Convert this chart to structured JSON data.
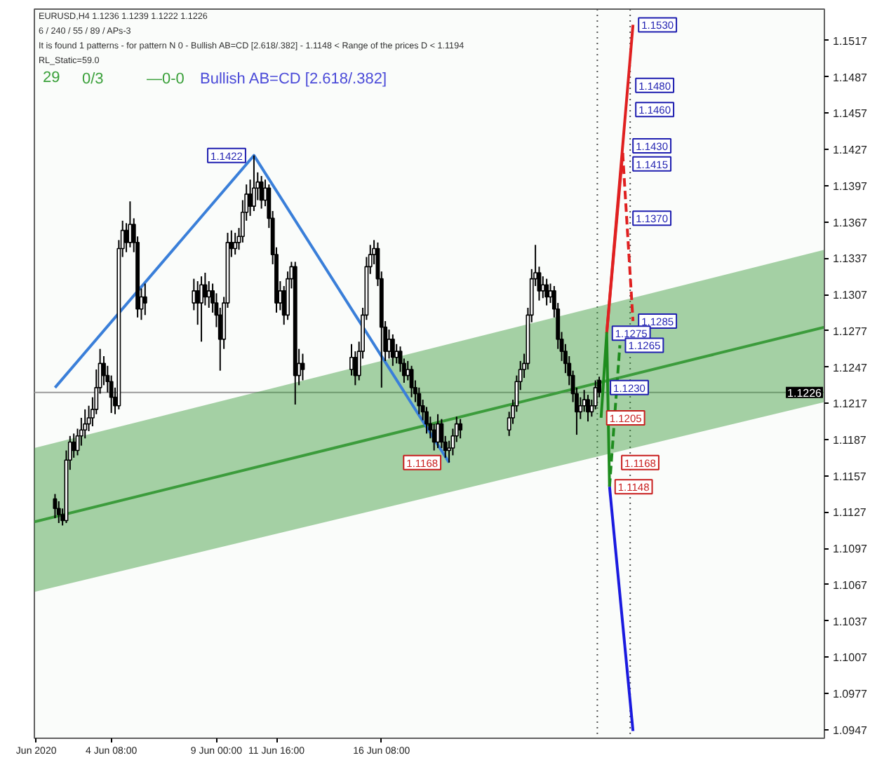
{
  "chart_data": {
    "type": "candlestick",
    "title": "EURUSD,H4 1.1236 1.1239 1.1222 1.1226",
    "subtitle": "6 / 240 / 55 / 89 / APs-3",
    "x": [
      "2020-06-01T20:00",
      "2020-06-02T00:00",
      "2020-06-02T04:00",
      "2020-06-02T08:00",
      "2020-06-02T12:00",
      "2020-06-02T16:00",
      "2020-06-02T20:00",
      "2020-06-03T00:00",
      "2020-06-03T04:00",
      "2020-06-03T08:00",
      "2020-06-03T12:00",
      "2020-06-03T16:00",
      "2020-06-03T20:00",
      "2020-06-04T00:00",
      "2020-06-04T04:00",
      "2020-06-04T08:00",
      "2020-06-04T12:00",
      "2020-06-04T16:00",
      "2020-06-04T20:00",
      "2020-06-05T00:00",
      "2020-06-05T04:00",
      "2020-06-05T08:00",
      "2020-06-05T12:00",
      "2020-06-05T16:00",
      "2020-06-05T20:00",
      "2020-06-08T00:00",
      "2020-06-08T04:00",
      "2020-06-08T08:00",
      "2020-06-08T12:00",
      "2020-06-08T16:00",
      "2020-06-08T20:00",
      "2020-06-09T00:00",
      "2020-06-09T04:00",
      "2020-06-09T08:00",
      "2020-06-09T12:00",
      "2020-06-09T16:00",
      "2020-06-09T20:00",
      "2020-06-10T00:00",
      "2020-06-10T04:00",
      "2020-06-10T08:00",
      "2020-06-10T12:00",
      "2020-06-10T16:00",
      "2020-06-10T20:00",
      "2020-06-11T00:00",
      "2020-06-11T04:00",
      "2020-06-11T08:00",
      "2020-06-11T12:00",
      "2020-06-11T16:00",
      "2020-06-11T20:00",
      "2020-06-12T00:00",
      "2020-06-12T04:00",
      "2020-06-12T08:00",
      "2020-06-12T12:00",
      "2020-06-12T16:00",
      "2020-06-12T20:00",
      "2020-06-15T00:00",
      "2020-06-15T04:00",
      "2020-06-15T08:00",
      "2020-06-15T12:00",
      "2020-06-15T16:00",
      "2020-06-15T20:00",
      "2020-06-16T00:00",
      "2020-06-16T04:00",
      "2020-06-16T08:00",
      "2020-06-16T12:00",
      "2020-06-16T16:00",
      "2020-06-16T20:00",
      "2020-06-17T00:00",
      "2020-06-17T04:00",
      "2020-06-17T08:00",
      "2020-06-17T12:00",
      "2020-06-17T16:00",
      "2020-06-17T20:00",
      "2020-06-18T00:00",
      "2020-06-18T04:00",
      "2020-06-18T08:00",
      "2020-06-18T12:00",
      "2020-06-18T16:00",
      "2020-06-18T20:00",
      "2020-06-19T00:00",
      "2020-06-19T04:00",
      "2020-06-19T08:00",
      "2020-06-19T12:00",
      "2020-06-19T16:00",
      "2020-06-19T20:00",
      "2020-06-22T00:00",
      "2020-06-22T04:00",
      "2020-06-22T08:00",
      "2020-06-22T12:00",
      "2020-06-22T16:00",
      "2020-06-22T20:00",
      "2020-06-23T00:00",
      "2020-06-23T04:00",
      "2020-06-23T08:00",
      "2020-06-23T12:00",
      "2020-06-23T16:00",
      "2020-06-23T20:00",
      "2020-06-24T00:00",
      "2020-06-24T04:00",
      "2020-06-24T08:00",
      "2020-06-24T12:00",
      "2020-06-24T16:00",
      "2020-06-24T20:00",
      "2020-06-25T00:00",
      "2020-06-25T04:00",
      "2020-06-25T08:00",
      "2020-06-25T12:00",
      "2020-06-25T16:00",
      "2020-06-25T20:00",
      "2020-06-26T00:00"
    ],
    "ohlc": [
      [
        1.1138,
        1.1142,
        1.1122,
        1.113
      ],
      [
        1.113,
        1.1136,
        1.1118,
        1.1125
      ],
      [
        1.1125,
        1.113,
        1.1116,
        1.112
      ],
      [
        1.112,
        1.1178,
        1.1118,
        1.117
      ],
      [
        1.117,
        1.119,
        1.1162,
        1.1185
      ],
      [
        1.1185,
        1.1192,
        1.1172,
        1.1178
      ],
      [
        1.1178,
        1.1196,
        1.1174,
        1.119
      ],
      [
        1.119,
        1.1205,
        1.1182,
        1.1195
      ],
      [
        1.1195,
        1.1212,
        1.1188,
        1.12
      ],
      [
        1.12,
        1.1215,
        1.1194,
        1.1205
      ],
      [
        1.1205,
        1.1222,
        1.1198,
        1.1212
      ],
      [
        1.1212,
        1.1245,
        1.1208,
        1.123
      ],
      [
        1.123,
        1.1262,
        1.1225,
        1.125
      ],
      [
        1.125,
        1.1256,
        1.1232,
        1.124
      ],
      [
        1.124,
        1.1248,
        1.1226,
        1.1235
      ],
      [
        1.1235,
        1.124,
        1.1209,
        1.1222
      ],
      [
        1.1222,
        1.123,
        1.1208,
        1.1215
      ],
      [
        1.1215,
        1.1352,
        1.1212,
        1.1345
      ],
      [
        1.1345,
        1.1368,
        1.1338,
        1.136
      ],
      [
        1.136,
        1.1366,
        1.1342,
        1.135
      ],
      [
        1.135,
        1.1384,
        1.1346,
        1.1365
      ],
      [
        1.1365,
        1.137,
        1.1342,
        1.135
      ],
      [
        1.135,
        1.1355,
        1.1288,
        1.1295
      ],
      [
        1.1295,
        1.1312,
        1.1286,
        1.1305
      ],
      [
        1.1305,
        1.1316,
        1.129,
        1.13
      ],
      [
        1.13,
        1.132,
        1.1294,
        1.131
      ],
      [
        1.131,
        1.1318,
        1.1282,
        1.13
      ],
      [
        1.13,
        1.1322,
        1.1268,
        1.1315
      ],
      [
        1.1315,
        1.1325,
        1.1298,
        1.1305
      ],
      [
        1.1305,
        1.1318,
        1.1296,
        1.131
      ],
      [
        1.131,
        1.1316,
        1.1292,
        1.13
      ],
      [
        1.13,
        1.1308,
        1.128,
        1.129
      ],
      [
        1.129,
        1.1296,
        1.1244,
        1.127
      ],
      [
        1.127,
        1.1305,
        1.1262,
        1.13
      ],
      [
        1.13,
        1.1358,
        1.1296,
        1.135
      ],
      [
        1.135,
        1.136,
        1.1338,
        1.1345
      ],
      [
        1.1345,
        1.1358,
        1.134,
        1.135
      ],
      [
        1.135,
        1.1362,
        1.1344,
        1.1355
      ],
      [
        1.1355,
        1.1385,
        1.135,
        1.1375
      ],
      [
        1.1375,
        1.1398,
        1.1368,
        1.139
      ],
      [
        1.139,
        1.1402,
        1.1372,
        1.138
      ],
      [
        1.138,
        1.1422,
        1.1376,
        1.1395
      ],
      [
        1.1395,
        1.1408,
        1.1385,
        1.14
      ],
      [
        1.14,
        1.1405,
        1.1378,
        1.1385
      ],
      [
        1.1385,
        1.1402,
        1.138,
        1.1395
      ],
      [
        1.1395,
        1.1398,
        1.1362,
        1.137
      ],
      [
        1.137,
        1.1376,
        1.1332,
        1.134
      ],
      [
        1.134,
        1.1346,
        1.1292,
        1.13
      ],
      [
        1.13,
        1.1318,
        1.1294,
        1.131
      ],
      [
        1.131,
        1.1314,
        1.1282,
        1.129
      ],
      [
        1.129,
        1.1326,
        1.1286,
        1.132
      ],
      [
        1.132,
        1.1334,
        1.1312,
        1.133
      ],
      [
        1.133,
        1.1334,
        1.1216,
        1.124
      ],
      [
        1.124,
        1.1262,
        1.1232,
        1.125
      ],
      [
        1.125,
        1.1258,
        1.1236,
        1.1245
      ],
      [
        1.1245,
        1.1266,
        1.124,
        1.1255
      ],
      [
        1.1255,
        1.126,
        1.1232,
        1.124
      ],
      [
        1.124,
        1.1268,
        1.1236,
        1.126
      ],
      [
        1.126,
        1.1296,
        1.1254,
        1.129
      ],
      [
        1.129,
        1.1338,
        1.1286,
        1.133
      ],
      [
        1.133,
        1.1348,
        1.1324,
        1.134
      ],
      [
        1.134,
        1.1352,
        1.1332,
        1.1345
      ],
      [
        1.1345,
        1.135,
        1.1314,
        1.132
      ],
      [
        1.132,
        1.1326,
        1.123,
        1.128
      ],
      [
        1.128,
        1.1285,
        1.1252,
        1.126
      ],
      [
        1.126,
        1.1278,
        1.1254,
        1.127
      ],
      [
        1.127,
        1.1274,
        1.1248,
        1.1255
      ],
      [
        1.1255,
        1.1266,
        1.125,
        1.126
      ],
      [
        1.126,
        1.1264,
        1.1243,
        1.125
      ],
      [
        1.125,
        1.1254,
        1.1234,
        1.124
      ],
      [
        1.124,
        1.1252,
        1.1236,
        1.1245
      ],
      [
        1.1245,
        1.1248,
        1.1222,
        1.123
      ],
      [
        1.123,
        1.1236,
        1.1218,
        1.1225
      ],
      [
        1.1225,
        1.123,
        1.1208,
        1.1215
      ],
      [
        1.1215,
        1.122,
        1.1203,
        1.121
      ],
      [
        1.121,
        1.1214,
        1.1192,
        1.12
      ],
      [
        1.12,
        1.1206,
        1.1188,
        1.1195
      ],
      [
        1.1195,
        1.12,
        1.1178,
        1.1185
      ],
      [
        1.1185,
        1.1208,
        1.118,
        1.12
      ],
      [
        1.12,
        1.1204,
        1.118,
        1.1185
      ],
      [
        1.1185,
        1.119,
        1.1172,
        1.1178
      ],
      [
        1.1178,
        1.1186,
        1.1168,
        1.118
      ],
      [
        1.118,
        1.1196,
        1.1174,
        1.119
      ],
      [
        1.119,
        1.1206,
        1.1185,
        1.12
      ],
      [
        1.12,
        1.1204,
        1.1188,
        1.1195
      ],
      [
        1.1195,
        1.121,
        1.119,
        1.1205
      ],
      [
        1.1205,
        1.122,
        1.12,
        1.1215
      ],
      [
        1.1215,
        1.124,
        1.121,
        1.1235
      ],
      [
        1.1235,
        1.1252,
        1.1228,
        1.1245
      ],
      [
        1.1245,
        1.1258,
        1.1238,
        1.125
      ],
      [
        1.125,
        1.1296,
        1.1245,
        1.129
      ],
      [
        1.129,
        1.1328,
        1.1284,
        1.132
      ],
      [
        1.132,
        1.1348,
        1.1314,
        1.1325
      ],
      [
        1.1325,
        1.133,
        1.1302,
        1.131
      ],
      [
        1.131,
        1.1322,
        1.1304,
        1.1315
      ],
      [
        1.1315,
        1.132,
        1.1298,
        1.1305
      ],
      [
        1.1305,
        1.1316,
        1.13,
        1.131
      ],
      [
        1.131,
        1.1314,
        1.1288,
        1.1295
      ],
      [
        1.1295,
        1.13,
        1.1262,
        1.127
      ],
      [
        1.127,
        1.1276,
        1.1252,
        1.126
      ],
      [
        1.126,
        1.1266,
        1.1242,
        1.125
      ],
      [
        1.125,
        1.1256,
        1.1232,
        1.124
      ],
      [
        1.124,
        1.1244,
        1.1218,
        1.1225
      ],
      [
        1.1225,
        1.123,
        1.1191,
        1.121
      ],
      [
        1.121,
        1.1222,
        1.1204,
        1.1215
      ],
      [
        1.1215,
        1.1228,
        1.121,
        1.122
      ],
      [
        1.122,
        1.1224,
        1.1202,
        1.121
      ],
      [
        1.121,
        1.122,
        1.1206,
        1.1215
      ],
      [
        1.1215,
        1.1236,
        1.1212,
        1.123
      ],
      [
        1.1236,
        1.1239,
        1.1222,
        1.1226
      ]
    ],
    "series": [
      {
        "type": "line",
        "color": "#3c9c3c",
        "x": [
          "2020-05-31T22:00",
          "2020-07-06T00:00"
        ],
        "values": [
          1.1119,
          1.128
        ],
        "lower": [
          1.1061,
          1.1218
        ],
        "upper": [
          1.118,
          1.1344
        ]
      },
      {
        "type": "line",
        "color": "#3a7fd9",
        "x": [
          "2020-06-01T20:00",
          "2020-06-10T16:00",
          "2020-06-19T08:00"
        ],
        "values": [
          1.123,
          1.1422,
          1.1168
        ]
      },
      {
        "type": "line",
        "color": "#e02020",
        "x": [
          "2020-06-26T08:00",
          "2020-06-27T12:00"
        ],
        "values": [
          1.1275,
          1.153
        ]
      },
      {
        "type": "line",
        "color": "#e02020",
        "x": [
          "2020-06-26T08:00",
          "2020-06-27T01:00"
        ],
        "values": [
          1.1275,
          1.1424
        ]
      },
      {
        "type": "line",
        "color": "#e02020",
        "line_style": "dashed",
        "x": [
          "2020-06-27T01:00",
          "2020-06-27T12:00"
        ],
        "values": [
          1.1424,
          1.1285
        ]
      },
      {
        "type": "line",
        "color": "#1e8c1e",
        "x": [
          "2020-06-26T02:00",
          "2020-06-26T08:00",
          "2020-06-26T11:00"
        ],
        "values": [
          1.1205,
          1.1275,
          1.1148
        ]
      },
      {
        "type": "line",
        "color": "#1e8c1e",
        "line_style": "dashed",
        "x": [
          "2020-06-26T11:00",
          "2020-06-26T22:00"
        ],
        "values": [
          1.1148,
          1.1265
        ]
      },
      {
        "type": "line",
        "color": "#1a1adf",
        "x": [
          "2020-06-26T11:00",
          "2020-06-27T12:00"
        ],
        "values": [
          1.1148,
          1.0946
        ]
      }
    ],
    "xlim": [
      "2020-05-31T22:00",
      "2020-07-06T00:00"
    ],
    "xticks": [
      {
        "value": "2020-06-01",
        "label": "Jun 2020"
      },
      {
        "value": "2020-06-04T08:00",
        "label": "4 Jun 08:00"
      },
      {
        "value": "2020-06-09T00:00",
        "label": "9 Jun 00:00"
      },
      {
        "value": "2020-06-11T16:00",
        "label": "11 Jun 16:00"
      },
      {
        "value": "2020-06-16T08:00",
        "label": "16 Jun 08:00"
      }
    ],
    "ylim": [
      1.094,
      1.1543
    ],
    "yticks": [
      1.0947,
      1.0977,
      1.1007,
      1.1037,
      1.1067,
      1.1097,
      1.1127,
      1.1157,
      1.1187,
      1.1217,
      1.1247,
      1.1277,
      1.1307,
      1.1337,
      1.1367,
      1.1397,
      1.1427,
      1.1457,
      1.1487,
      1.1517
    ],
    "ref_lines": [
      {
        "axis": "y",
        "value": 1.1226,
        "label": "1.1226",
        "color": "#9a9a9a"
      },
      {
        "axis": "x",
        "value": "2020-06-25T22:00",
        "color": "#505050",
        "line_style": "dotted"
      },
      {
        "axis": "x",
        "value": "2020-06-27T09:00",
        "color": "#505050",
        "line_style": "dotted"
      }
    ],
    "annotations": [
      "It is found 1 patterns  -  for pattern N 0 - Bullish AB=CD [2.618/.382] - 1.1148 < Range of the prices D < 1.1194",
      "RL_Static=59.0",
      "29",
      "0/3",
      "—0-0",
      "Bullish AB=CD [2.618/.382]",
      {
        "text": "1.1422",
        "x": "2020-06-10T16:00",
        "y": 1.1422
      },
      {
        "text": "1.1168",
        "x": "2020-06-19T08:00",
        "y": 1.1168
      },
      {
        "text": "1.1530",
        "x": "2020-06-27T12:00",
        "y": 1.153
      },
      {
        "text": "1.1480",
        "x": "2020-06-27T09:00",
        "y": 1.148
      },
      {
        "text": "1.1460",
        "x": "2020-06-27T09:00",
        "y": 1.146
      },
      {
        "text": "1.1430",
        "x": "2020-06-27T06:00",
        "y": 1.143
      },
      {
        "text": "1.1415",
        "x": "2020-06-27T06:00",
        "y": 1.1415
      },
      {
        "text": "1.1370",
        "x": "2020-06-27T06:00",
        "y": 1.137
      },
      {
        "text": "1.1285",
        "x": "2020-06-27T12:00",
        "y": 1.1285
      },
      {
        "text": "1.1275",
        "x": "2020-06-26T08:00",
        "y": 1.1275
      },
      {
        "text": "1.1265",
        "x": "2020-06-26T22:00",
        "y": 1.1265
      },
      {
        "text": "1.1230",
        "x": "2020-06-26T06:00",
        "y": 1.123
      },
      {
        "text": "1.1205",
        "x": "2020-06-26T02:00",
        "y": 1.1205
      },
      {
        "text": "1.1168",
        "x": "2020-06-26T18:00",
        "y": 1.1168
      },
      {
        "text": "1.1148",
        "x": "2020-06-26T11:00",
        "y": 1.1148
      }
    ]
  }
}
